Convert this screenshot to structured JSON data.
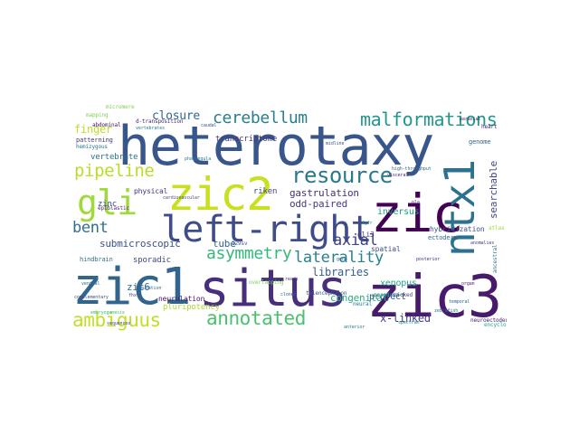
{
  "words": [
    {
      "id": "heterotaxy",
      "text": "heterotaxy",
      "color": "#39568c"
    },
    {
      "id": "zic2",
      "text": "zic2",
      "color": "#c8e020"
    },
    {
      "id": "gli",
      "text": "gli",
      "color": "#9fda3a"
    },
    {
      "id": "left-right",
      "text": "left-right",
      "color": "#3e4c8a"
    },
    {
      "id": "zic",
      "text": "zic",
      "color": "#440154"
    },
    {
      "id": "ntx1",
      "text": "ntx1",
      "color": "#2c728e"
    },
    {
      "id": "zic3",
      "text": "zic3",
      "color": "#481a6c"
    },
    {
      "id": "zic1",
      "text": "zic1",
      "color": "#32658e"
    },
    {
      "id": "situs",
      "text": "situs",
      "color": "#472f7d"
    },
    {
      "id": "resource",
      "text": "resource",
      "color": "#2a788e"
    },
    {
      "id": "malformations",
      "text": "malformations",
      "color": "#1f988b"
    },
    {
      "id": "cerebellum",
      "text": "cerebellum",
      "color": "#277f8e"
    },
    {
      "id": "pipeline",
      "text": "pipeline",
      "color": "#bade28"
    },
    {
      "id": "ambiguus",
      "text": "ambiguus",
      "color": "#c2df23"
    },
    {
      "id": "annotated",
      "text": "annotated",
      "color": "#4ac16d"
    },
    {
      "id": "asymmetry",
      "text": "asymmetry",
      "color": "#35b779"
    },
    {
      "id": "bent",
      "text": "bent",
      "color": "#2e6f8e"
    },
    {
      "id": "laterality",
      "text": "laterality",
      "color": "#26828e"
    },
    {
      "id": "axial",
      "text": "axial",
      "color": "#404387"
    },
    {
      "id": "closure",
      "text": "closure",
      "color": "#31688e"
    },
    {
      "id": "finger",
      "text": "finger",
      "color": "#bddf26"
    },
    {
      "id": "gastrulation",
      "text": "gastrulation",
      "color": "#472e7c"
    },
    {
      "id": "odd-paired",
      "text": "odd-paired",
      "color": "#443b84"
    },
    {
      "id": "submicroscopic",
      "text": "submicroscopic",
      "color": "#3b528b"
    },
    {
      "id": "zic6",
      "text": "zic6",
      "color": "#2f6c8e"
    },
    {
      "id": "tube",
      "text": "tube",
      "color": "#34618d"
    },
    {
      "id": "libraries",
      "text": "libraries",
      "color": "#355f8d"
    },
    {
      "id": "congenital",
      "text": "congenital",
      "color": "#29af7f"
    },
    {
      "id": "project",
      "text": "project",
      "color": "#38598c"
    },
    {
      "id": "x-linked",
      "text": "x-linked",
      "color": "#433e85"
    },
    {
      "id": "xenopus",
      "text": "xenopus",
      "color": "#21a685"
    },
    {
      "id": "inversus",
      "text": "inversus",
      "color": "#1fa088"
    },
    {
      "id": "searchable",
      "text": "searchable",
      "color": "#3f4889"
    },
    {
      "id": "transcriptome",
      "text": "transcriptome",
      "color": "#453581"
    },
    {
      "id": "vertebrate",
      "text": "vertebrate",
      "color": "#2d708e"
    },
    {
      "id": "physical",
      "text": "physical",
      "color": "#46327e"
    },
    {
      "id": "zinc",
      "text": "zinc",
      "color": "#3f4788"
    },
    {
      "id": "sporadic",
      "text": "sporadic",
      "color": "#3e4989"
    },
    {
      "id": "hindbrain",
      "text": "hindbrain",
      "color": "#2c738e"
    },
    {
      "id": "riken",
      "text": "riken",
      "color": "#414487"
    },
    {
      "id": "gli3",
      "text": "gli3",
      "color": "#453882"
    },
    {
      "id": "spatial",
      "text": "spatial",
      "color": "#3d4e8a"
    },
    {
      "id": "hybridization",
      "text": "hybridization",
      "color": "#3b528b"
    },
    {
      "id": "mapping",
      "text": "mapping",
      "color": "#7ad151"
    },
    {
      "id": "patterning",
      "text": "patterning",
      "color": "#453781"
    },
    {
      "id": "abdominal",
      "text": "abdominal",
      "color": "#471063"
    },
    {
      "id": "hemizygous",
      "text": "hemizygous",
      "color": "#2a768e"
    },
    {
      "id": "epiblastic",
      "text": "epiblastic",
      "color": "#46307e"
    },
    {
      "id": "embryogenesis",
      "text": "embryogenesis",
      "color": "#38b977"
    },
    {
      "id": "pluripotency",
      "text": "pluripotency",
      "color": "#a8db34"
    },
    {
      "id": "neurulation",
      "text": "neurulation",
      "color": "#471365"
    },
    {
      "id": "overlapping",
      "text": "overlapping",
      "color": "#75d054"
    },
    {
      "id": "telencephalon",
      "text": "telencephalon",
      "color": "#39558c"
    },
    {
      "id": "neural",
      "text": "neural",
      "color": "#2a788e"
    },
    {
      "id": "mesoderm",
      "text": "mesoderm",
      "color": "#20938c"
    },
    {
      "id": "ectoderm",
      "text": "ectoderm",
      "color": "#31678e"
    },
    {
      "id": "encyclopedia",
      "text": "encyclopedia",
      "color": "#1fa287"
    },
    {
      "id": "neuroectoderm",
      "text": "neuroectoderm",
      "color": "#482374"
    },
    {
      "id": "genome",
      "text": "genome",
      "color": "#31688e"
    },
    {
      "id": "heart",
      "text": "heart",
      "color": "#481f70"
    },
    {
      "id": "d-transposition",
      "text": "d-transposition",
      "color": "#482576"
    },
    {
      "id": "vertebrates",
      "text": "vertebrates",
      "color": "#287c8e"
    },
    {
      "id": "picked",
      "text": "picked",
      "color": "#433d84"
    },
    {
      "id": "ancestral",
      "text": "ancestral",
      "color": "#2e6e8e"
    },
    {
      "id": "atlas",
      "text": "atlas",
      "color": "#9dd93b"
    },
    {
      "id": "129sv",
      "text": "129sv",
      "color": "#3b518b"
    },
    {
      "id": "anomalies",
      "text": "anomalies",
      "color": "#453882"
    },
    {
      "id": "midline",
      "text": "midline",
      "color": "#3a538b"
    },
    {
      "id": "cardiovascular",
      "text": "cardiovascular",
      "color": "#3e4a89"
    },
    {
      "id": "high-throughput",
      "text": "high-throughput",
      "color": "#31678e"
    },
    {
      "id": "gene",
      "text": "gene",
      "color": "#2d718e"
    },
    {
      "id": "visceral",
      "text": "visceral",
      "color": "#482173"
    },
    {
      "id": "pharyngula",
      "text": "pharyngula",
      "color": "#277e8e"
    },
    {
      "id": "ventral",
      "text": "ventral",
      "color": "#306a8e"
    },
    {
      "id": "posterior",
      "text": "posterior",
      "color": "#472c7a"
    },
    {
      "id": "organ",
      "text": "organ",
      "color": "#481769"
    },
    {
      "id": "complementary",
      "text": "complementary",
      "color": "#3c4f8a"
    },
    {
      "id": "spectrum",
      "text": "spectrum",
      "color": "#24868e"
    },
    {
      "id": "clones",
      "text": "clones",
      "color": "#2e6d8e"
    },
    {
      "id": "fhx",
      "text": "fhx",
      "color": "#3f4788"
    },
    {
      "id": "temporal",
      "text": "temporal",
      "color": "#33628d"
    },
    {
      "id": "paraxial",
      "text": "paraxial",
      "color": "#481b6d"
    },
    {
      "id": "micromere",
      "text": "micromere",
      "color": "#7cd250"
    },
    {
      "id": "caudal",
      "text": "caudal",
      "color": "#3a548c"
    },
    {
      "id": "pla",
      "text": "pla",
      "color": "#46337f"
    },
    {
      "id": "zebrafish",
      "text": "zebrafish",
      "color": "#2c718e"
    },
    {
      "id": "fgfr",
      "text": "fgfr",
      "color": "#23898e"
    },
    {
      "id": "reads",
      "text": "reads",
      "color": "#46307e"
    },
    {
      "id": "sequences",
      "text": "sequences",
      "color": "#3e4a89"
    },
    {
      "id": "mutation",
      "text": "mutation",
      "color": "#306a8e"
    },
    {
      "id": "anterior",
      "text": "anterior",
      "color": "#2a788e"
    }
  ]
}
